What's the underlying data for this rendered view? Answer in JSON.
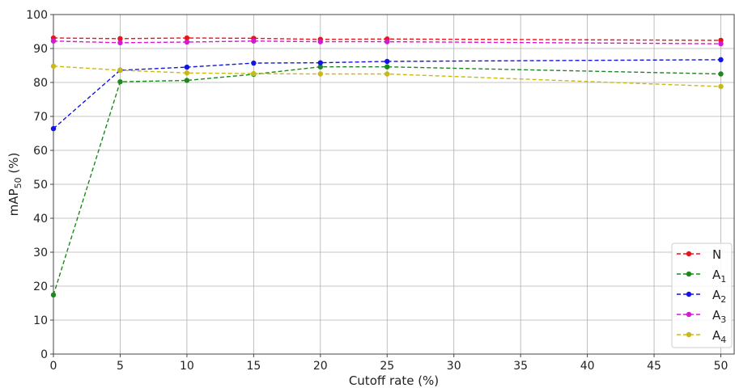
{
  "chart_data": {
    "type": "line",
    "xlabel": "Cutoff rate (%)",
    "ylabel": {
      "main": "mAP",
      "sub": "50",
      "suffix": " (%)"
    },
    "xlim": [
      0,
      51
    ],
    "ylim": [
      0,
      100
    ],
    "x_ticks": [
      0,
      5,
      10,
      15,
      20,
      25,
      30,
      35,
      40,
      45,
      50
    ],
    "y_ticks": [
      0,
      10,
      20,
      30,
      40,
      50,
      60,
      70,
      80,
      90,
      100
    ],
    "grid": true,
    "legend_position": "lower-right",
    "x": [
      0,
      5,
      10,
      15,
      20,
      25,
      50
    ],
    "series": [
      {
        "name": "N",
        "label_main": "N",
        "label_sub": "",
        "color": "#e8141b",
        "values": [
          93.1,
          92.9,
          93.1,
          93.0,
          92.7,
          92.8,
          92.4
        ]
      },
      {
        "name": "A1",
        "label_main": "A",
        "label_sub": "1",
        "color": "#1b8a1b",
        "values": [
          17.4,
          80.2,
          80.6,
          82.4,
          84.6,
          84.6,
          82.5
        ]
      },
      {
        "name": "A2",
        "label_main": "A",
        "label_sub": "2",
        "color": "#1414e6",
        "values": [
          66.4,
          83.6,
          84.5,
          85.7,
          85.8,
          86.2,
          86.7
        ]
      },
      {
        "name": "A3",
        "label_main": "A",
        "label_sub": "3",
        "color": "#d11ad1",
        "values": [
          92.2,
          91.7,
          91.9,
          92.2,
          92.0,
          92.0,
          91.4
        ]
      },
      {
        "name": "A4",
        "label_main": "A",
        "label_sub": "4",
        "color": "#c9b81a",
        "values": [
          84.8,
          83.6,
          82.8,
          82.6,
          82.5,
          82.5,
          78.8
        ]
      }
    ]
  }
}
